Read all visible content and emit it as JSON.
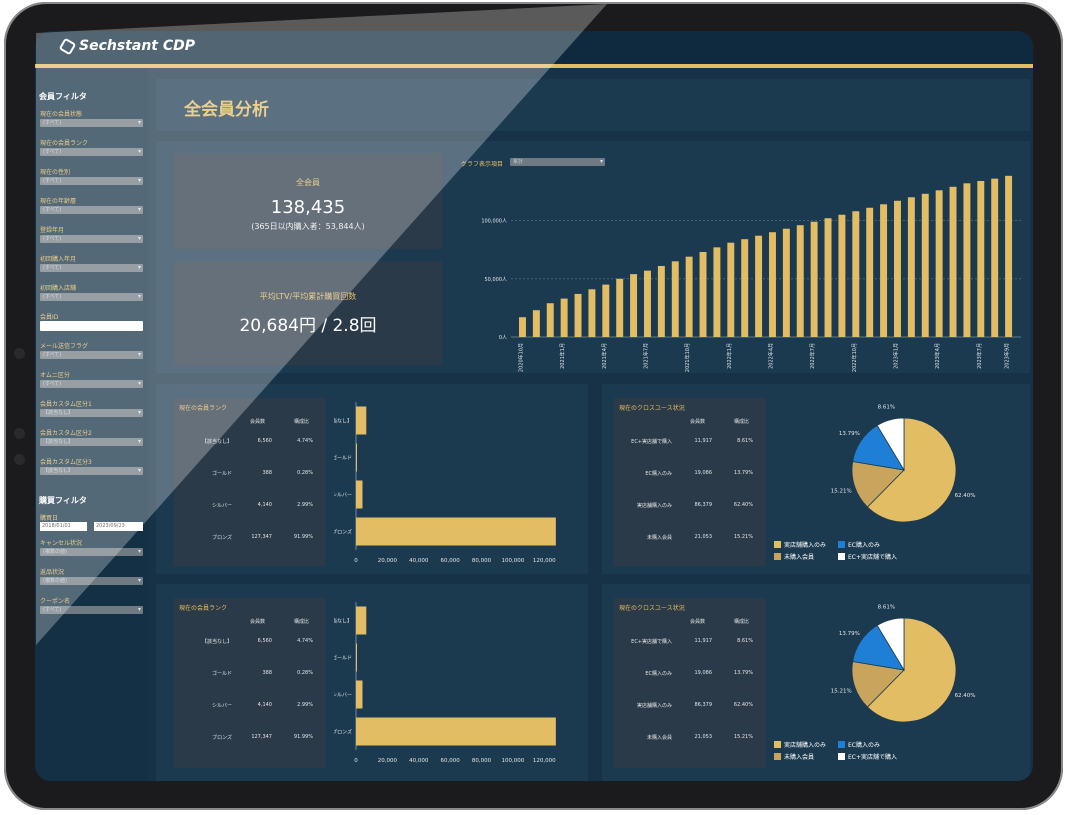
{
  "app": {
    "logo_text": "Sechstant CDP"
  },
  "sidebar": {
    "member_filter_title": "会員フィルタ",
    "filters": [
      {
        "label": "現在の会員状態",
        "value": "(すべて)"
      },
      {
        "label": "現在の会員ランク",
        "value": "(すべて)"
      },
      {
        "label": "現在の性別",
        "value": "(すべて)"
      },
      {
        "label": "現在の年齢層",
        "value": "(すべて)"
      },
      {
        "label": "登録年月",
        "value": "(すべて)"
      },
      {
        "label": "初回購入年月",
        "value": "(すべて)"
      },
      {
        "label": "初回購入店舗",
        "value": "(すべて)"
      },
      {
        "label": "会員ID",
        "value": ""
      },
      {
        "label": "メール送信フラグ",
        "value": "(すべて)"
      },
      {
        "label": "オムニ区分",
        "value": "(すべて)"
      },
      {
        "label": "会員カスタム区分1",
        "value": "【該当なし】"
      },
      {
        "label": "会員カスタム区分2",
        "value": "【該当なし】"
      },
      {
        "label": "会員カスタム区分3",
        "value": "【該当なし】"
      }
    ],
    "purchase_filter_title": "購買フィルタ",
    "purchase_date_label": "購買日",
    "date_from": "2018/01/01",
    "date_to": "2023/09/23",
    "purchase_filters": [
      {
        "label": "キャンセル状況",
        "value": "(複数の値)"
      },
      {
        "label": "返品状況",
        "value": "(複数の値)"
      },
      {
        "label": "クーポン名",
        "value": "(すべて)"
      }
    ]
  },
  "main": {
    "page_title": "全会員分析",
    "kpi_members": {
      "label": "全会員",
      "value": "138,435",
      "sub": "(365日以内購入者：53,844人)"
    },
    "kpi_ltv": {
      "label": "平均LTV/平均累計購買回数",
      "value": "20,684円 / 2.8回"
    },
    "graph_item_label": "グラフ表示項目",
    "graph_item_value": "累計"
  },
  "rank_table": {
    "title": "現在の会員ランク",
    "col_count": "会員数",
    "col_ratio": "構成比",
    "rows": [
      {
        "label": "【該当なし】",
        "count": "6,560",
        "ratio": "4.74%"
      },
      {
        "label": "ゴールド",
        "count": "388",
        "ratio": "0.28%"
      },
      {
        "label": "シルバー",
        "count": "4,140",
        "ratio": "2.99%"
      },
      {
        "label": "ブロンズ",
        "count": "127,347",
        "ratio": "91.99%"
      }
    ]
  },
  "cross_table": {
    "title": "現在のクロスユース状況",
    "col_count": "会員数",
    "col_ratio": "構成比",
    "rows": [
      {
        "label": "EC+実店舗で購入",
        "count": "11,917",
        "ratio": "8.61%"
      },
      {
        "label": "EC購入のみ",
        "count": "19,086",
        "ratio": "13.79%"
      },
      {
        "label": "実店舗購入のみ",
        "count": "86,379",
        "ratio": "62.40%"
      },
      {
        "label": "未購入会員",
        "count": "21,053",
        "ratio": "15.21%"
      }
    ]
  },
  "legend": {
    "store_only": "実店舗購入のみ",
    "ec_only": "EC購入のみ",
    "not_purchased": "未購入会員",
    "ec_store": "EC+実店舗で購入"
  },
  "colors": {
    "gold": "#e3bd63",
    "blue": "#1f7fd6",
    "tan": "#c8a45c",
    "white": "#ffffff",
    "navy": "#173246"
  },
  "chart_data": [
    {
      "type": "bar",
      "title": "",
      "x": [
        "2020年10月",
        "2020年11月",
        "2020年12月",
        "2021年1月",
        "2021年2月",
        "2021年3月",
        "2021年4月",
        "2021年5月",
        "2021年6月",
        "2021年7月",
        "2021年8月",
        "2021年9月",
        "2021年10月",
        "2021年11月",
        "2021年12月",
        "2022年1月",
        "2022年2月",
        "2022年3月",
        "2022年4月",
        "2022年5月",
        "2022年6月",
        "2022年7月",
        "2022年8月",
        "2022年9月",
        "2022年10月",
        "2022年11月",
        "2022年12月",
        "2023年1月",
        "2023年2月",
        "2023年3月",
        "2023年4月",
        "2023年5月",
        "2023年6月",
        "2023年7月",
        "2023年8月",
        "2023年9月"
      ],
      "tick_labels": [
        "2020年10月",
        "2021年1月",
        "2021年4月",
        "2021年7月",
        "2021年10月",
        "2022年1月",
        "2022年4月",
        "2022年7月",
        "2022年10月",
        "2023年1月",
        "2023年4月",
        "2023年7月",
        "2023年9月"
      ],
      "values": [
        17000,
        23000,
        29000,
        33000,
        37000,
        41000,
        45000,
        50000,
        54000,
        57000,
        61000,
        65000,
        69000,
        73000,
        77000,
        81000,
        84000,
        87000,
        90000,
        93000,
        96000,
        99000,
        102000,
        105000,
        108000,
        111000,
        114000,
        117000,
        120000,
        123000,
        126000,
        129000,
        132000,
        134000,
        136000,
        138435
      ],
      "yticks": [
        "0人",
        "50,000人",
        "100,000人"
      ],
      "ylim": [
        0,
        140000
      ],
      "grid": true
    },
    {
      "type": "bar",
      "orientation": "horizontal",
      "categories": [
        "【該当なし】",
        "ゴールド",
        "シルバー",
        "ブロンズ"
      ],
      "values": [
        6560,
        388,
        4140,
        127347
      ],
      "xticks": [
        "0",
        "20,000",
        "40,000",
        "60,000",
        "80,000",
        "100,000",
        "120,000"
      ],
      "xlim": [
        0,
        130000
      ]
    },
    {
      "type": "pie",
      "categories": [
        "実店舗購入のみ",
        "未購入会員",
        "EC購入のみ",
        "EC+実店舗で購入"
      ],
      "values": [
        62.4,
        15.21,
        13.79,
        8.61
      ],
      "labels": [
        "62.40%",
        "15.21%",
        "13.79%",
        "8.61%"
      ]
    }
  ]
}
